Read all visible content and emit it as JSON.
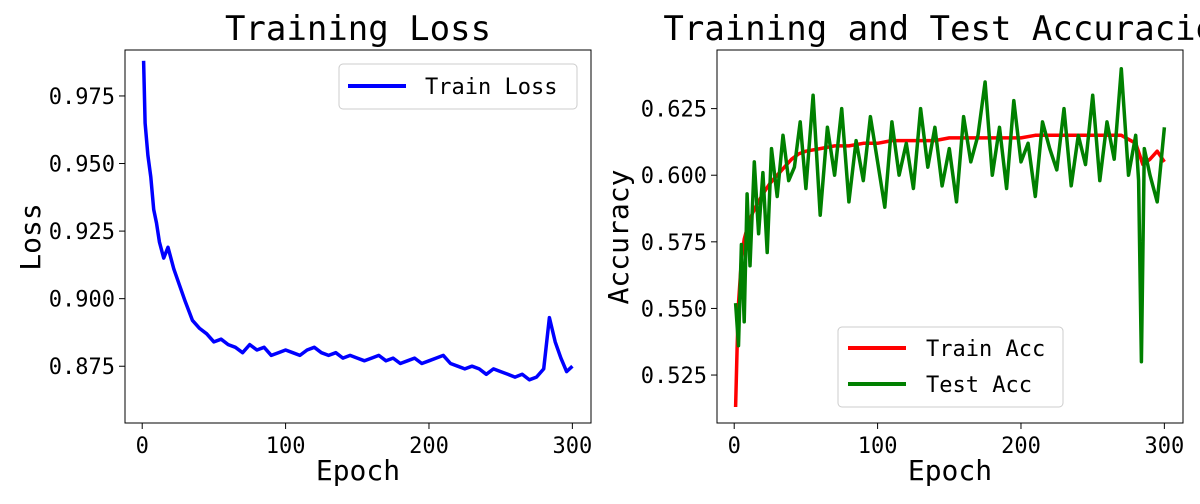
{
  "charts": [
    {
      "title": "Training Loss",
      "xlabel": "Epoch",
      "ylabel": "Loss",
      "xticks": [
        "0",
        "100",
        "200",
        "300"
      ],
      "yticks": [
        "0.875",
        "0.900",
        "0.925",
        "0.950",
        "0.975"
      ],
      "legend": [
        "Train Loss"
      ]
    },
    {
      "title": "Training and Test Accuracies",
      "xlabel": "Epoch",
      "ylabel": "Accuracy",
      "xticks": [
        "0",
        "100",
        "200",
        "300"
      ],
      "yticks": [
        "0.525",
        "0.550",
        "0.575",
        "0.600",
        "0.625"
      ],
      "legend": [
        "Train Acc",
        "Test Acc"
      ]
    }
  ],
  "chart_data": [
    {
      "type": "line",
      "title": "Training Loss",
      "xlabel": "Epoch",
      "ylabel": "Loss",
      "xlim": [
        -12,
        313
      ],
      "ylim": [
        0.854,
        0.992
      ],
      "grid": false,
      "legend_position": "top-right",
      "series": [
        {
          "name": "Train Loss",
          "color": "#0000ff",
          "x": [
            1,
            2,
            4,
            6,
            8,
            10,
            12,
            15,
            18,
            22,
            26,
            30,
            35,
            40,
            45,
            50,
            55,
            60,
            65,
            70,
            75,
            80,
            85,
            90,
            95,
            100,
            105,
            110,
            115,
            120,
            125,
            130,
            135,
            140,
            145,
            150,
            155,
            160,
            165,
            170,
            175,
            180,
            185,
            190,
            195,
            200,
            205,
            210,
            215,
            220,
            225,
            230,
            235,
            240,
            245,
            250,
            255,
            260,
            265,
            270,
            275,
            280,
            284,
            288,
            292,
            296,
            300
          ],
          "y": [
            0.988,
            0.965,
            0.953,
            0.945,
            0.933,
            0.928,
            0.921,
            0.915,
            0.919,
            0.911,
            0.905,
            0.899,
            0.892,
            0.889,
            0.887,
            0.884,
            0.885,
            0.883,
            0.882,
            0.88,
            0.883,
            0.881,
            0.882,
            0.879,
            0.88,
            0.881,
            0.88,
            0.879,
            0.881,
            0.882,
            0.88,
            0.879,
            0.88,
            0.878,
            0.879,
            0.878,
            0.877,
            0.878,
            0.879,
            0.877,
            0.878,
            0.876,
            0.877,
            0.878,
            0.876,
            0.877,
            0.878,
            0.879,
            0.876,
            0.875,
            0.874,
            0.875,
            0.874,
            0.872,
            0.874,
            0.873,
            0.872,
            0.871,
            0.872,
            0.87,
            0.871,
            0.874,
            0.893,
            0.884,
            0.878,
            0.873,
            0.875
          ]
        }
      ]
    },
    {
      "type": "line",
      "title": "Training and Test Accuracies",
      "xlabel": "Epoch",
      "ylabel": "Accuracy",
      "xlim": [
        -12,
        313
      ],
      "ylim": [
        0.507,
        0.647
      ],
      "grid": false,
      "legend_position": "lower-center",
      "series": [
        {
          "name": "Train Acc",
          "color": "#ff0000",
          "x": [
            1,
            2,
            3,
            5,
            7,
            10,
            13,
            16,
            20,
            25,
            30,
            35,
            40,
            45,
            50,
            60,
            70,
            80,
            90,
            100,
            110,
            120,
            130,
            140,
            150,
            160,
            170,
            180,
            190,
            200,
            210,
            220,
            230,
            240,
            250,
            260,
            270,
            280,
            285,
            290,
            295,
            300
          ],
          "y": [
            0.513,
            0.535,
            0.552,
            0.568,
            0.576,
            0.582,
            0.586,
            0.589,
            0.593,
            0.597,
            0.6,
            0.603,
            0.606,
            0.608,
            0.609,
            0.61,
            0.611,
            0.611,
            0.612,
            0.612,
            0.613,
            0.613,
            0.613,
            0.613,
            0.614,
            0.614,
            0.614,
            0.614,
            0.614,
            0.614,
            0.615,
            0.615,
            0.615,
            0.615,
            0.615,
            0.615,
            0.615,
            0.612,
            0.604,
            0.606,
            0.609,
            0.605
          ]
        },
        {
          "name": "Test Acc",
          "color": "#008000",
          "x": [
            1,
            3,
            5,
            7,
            9,
            11,
            14,
            17,
            20,
            23,
            26,
            30,
            34,
            38,
            42,
            46,
            50,
            55,
            60,
            65,
            70,
            75,
            80,
            85,
            90,
            95,
            100,
            105,
            110,
            115,
            120,
            125,
            130,
            135,
            140,
            145,
            150,
            155,
            160,
            165,
            170,
            175,
            180,
            185,
            190,
            195,
            200,
            205,
            210,
            215,
            220,
            225,
            230,
            235,
            240,
            245,
            250,
            255,
            260,
            265,
            270,
            275,
            280,
            282,
            284,
            286,
            290,
            295,
            300
          ],
          "y": [
            0.552,
            0.536,
            0.574,
            0.545,
            0.593,
            0.566,
            0.605,
            0.578,
            0.601,
            0.571,
            0.61,
            0.592,
            0.615,
            0.598,
            0.603,
            0.62,
            0.595,
            0.63,
            0.585,
            0.618,
            0.6,
            0.625,
            0.59,
            0.613,
            0.598,
            0.622,
            0.605,
            0.588,
            0.62,
            0.6,
            0.612,
            0.595,
            0.625,
            0.603,
            0.618,
            0.596,
            0.61,
            0.59,
            0.622,
            0.605,
            0.615,
            0.635,
            0.6,
            0.618,
            0.595,
            0.628,
            0.605,
            0.612,
            0.592,
            0.62,
            0.61,
            0.602,
            0.625,
            0.596,
            0.615,
            0.604,
            0.63,
            0.598,
            0.62,
            0.606,
            0.64,
            0.6,
            0.615,
            0.598,
            0.53,
            0.61,
            0.6,
            0.59,
            0.618
          ]
        }
      ]
    }
  ]
}
